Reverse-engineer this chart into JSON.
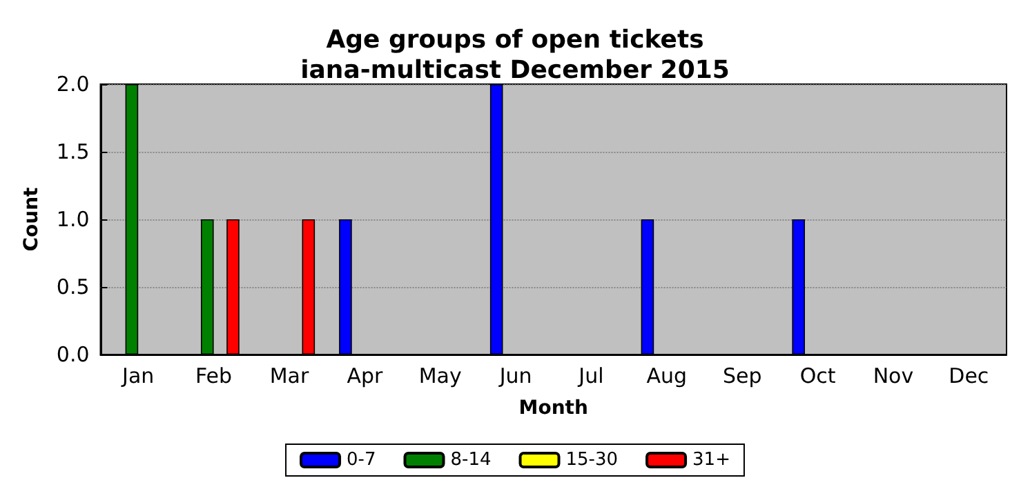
{
  "chart_data": {
    "type": "bar",
    "title": "Age groups of open tickets\niana-multicast December 2015",
    "xlabel": "Month",
    "ylabel": "Count",
    "categories": [
      "Jan",
      "Feb",
      "Mar",
      "Apr",
      "May",
      "Jun",
      "Jul",
      "Aug",
      "Sep",
      "Oct",
      "Nov",
      "Dec"
    ],
    "series": [
      {
        "name": "0-7",
        "color": "#0000ff",
        "values": [
          0,
          0,
          0,
          1,
          0,
          2,
          0,
          1,
          0,
          1,
          0,
          0
        ]
      },
      {
        "name": "8-14",
        "color": "#008000",
        "values": [
          2,
          1,
          0,
          0,
          0,
          0,
          0,
          0,
          0,
          0,
          0,
          0
        ]
      },
      {
        "name": "15-30",
        "color": "#ffff00",
        "values": [
          0,
          0,
          0,
          0,
          0,
          0,
          0,
          0,
          0,
          0,
          0,
          0
        ]
      },
      {
        "name": "31+",
        "color": "#ff0000",
        "values": [
          0,
          1,
          1,
          0,
          0,
          0,
          0,
          0,
          0,
          0,
          0,
          0
        ]
      }
    ],
    "ylim": [
      0,
      2
    ],
    "yticks": [
      {
        "value": 0,
        "label": "0.0"
      },
      {
        "value": 0.5,
        "label": "0.5"
      },
      {
        "value": 1,
        "label": "1.0"
      },
      {
        "value": 1.5,
        "label": "1.5"
      },
      {
        "value": 2,
        "label": "2.0"
      }
    ],
    "grid": "y",
    "legend": "bottom"
  }
}
